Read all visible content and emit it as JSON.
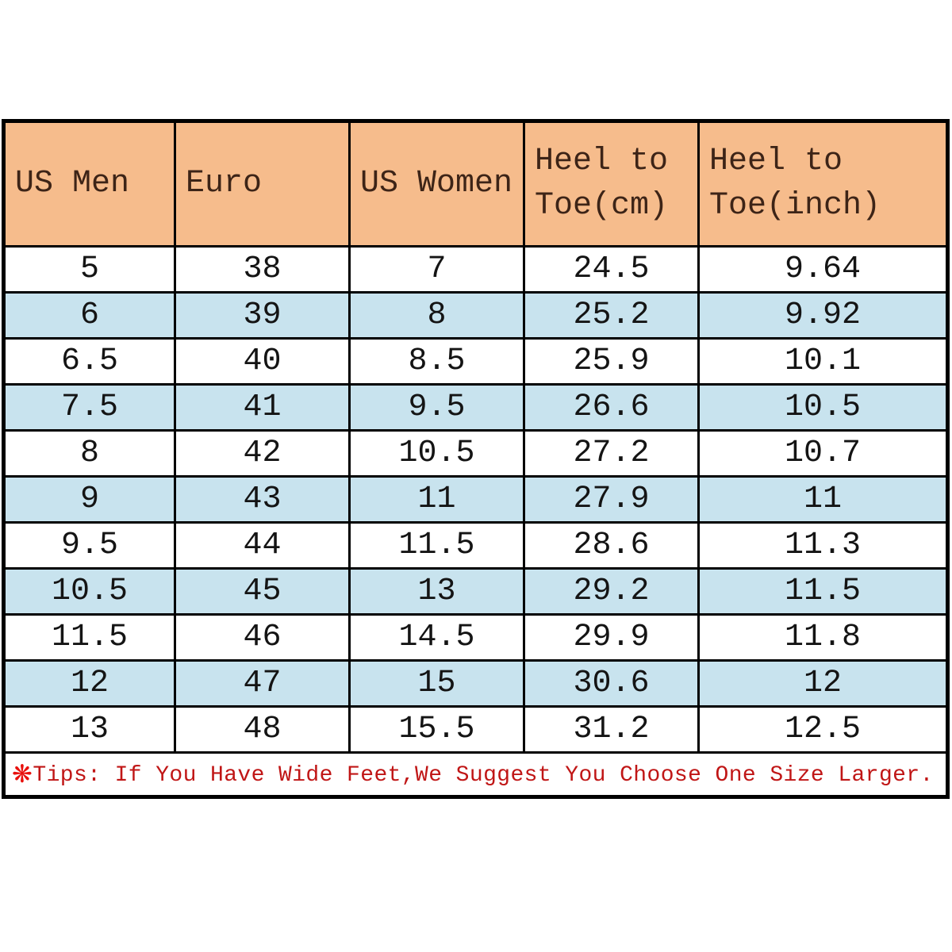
{
  "table": {
    "columns": [
      {
        "id": "us-men",
        "label": "US Men"
      },
      {
        "id": "euro",
        "label": "Euro"
      },
      {
        "id": "us-women",
        "label": "US Women"
      },
      {
        "id": "heel-to-toe-cm",
        "label": "Heel to\nToe(cm)"
      },
      {
        "id": "heel-to-toe-inch",
        "label": "Heel to\nToe(inch)"
      }
    ],
    "rows": [
      [
        "5",
        "38",
        "7",
        "24.5",
        "9.64"
      ],
      [
        "6",
        "39",
        "8",
        "25.2",
        "9.92"
      ],
      [
        "6.5",
        "40",
        "8.5",
        "25.9",
        "10.1"
      ],
      [
        "7.5",
        "41",
        "9.5",
        "26.6",
        "10.5"
      ],
      [
        "8",
        "42",
        "10.5",
        "27.2",
        "10.7"
      ],
      [
        "9",
        "43",
        "11",
        "27.9",
        "11"
      ],
      [
        "9.5",
        "44",
        "11.5",
        "28.6",
        "11.3"
      ],
      [
        "10.5",
        "45",
        "13",
        "29.2",
        "11.5"
      ],
      [
        "11.5",
        "46",
        "14.5",
        "29.9",
        "11.8"
      ],
      [
        "12",
        "47",
        "15",
        "30.6",
        "12"
      ],
      [
        "13",
        "48",
        "15.5",
        "31.2",
        "12.5"
      ]
    ]
  },
  "tips": {
    "marker": "❋",
    "text": "Tips: If You Have Wide Feet,We Suggest You Choose One Size Larger."
  },
  "colors": {
    "header_bg": "#F6BC8C",
    "header_text": "#3D2417",
    "alt_row_bg": "#C8E3EE",
    "row_bg": "#FFFFFF",
    "data_text": "#141414",
    "border": "#000000",
    "tips_text": "#C01616",
    "tips_marker": "#E8100C",
    "page_bg": "#FFFFFF"
  },
  "chart_data": {
    "type": "table",
    "columns": [
      "US Men",
      "Euro",
      "US Women",
      "Heel to Toe(cm)",
      "Heel to Toe(inch)"
    ],
    "rows": [
      [
        5,
        38,
        7,
        24.5,
        9.64
      ],
      [
        6,
        39,
        8,
        25.2,
        9.92
      ],
      [
        6.5,
        40,
        8.5,
        25.9,
        10.1
      ],
      [
        7.5,
        41,
        9.5,
        26.6,
        10.5
      ],
      [
        8,
        42,
        10.5,
        27.2,
        10.7
      ],
      [
        9,
        43,
        11,
        27.9,
        11
      ],
      [
        9.5,
        44,
        11.5,
        28.6,
        11.3
      ],
      [
        10.5,
        45,
        13,
        29.2,
        11.5
      ],
      [
        11.5,
        46,
        14.5,
        29.9,
        11.8
      ],
      [
        12,
        47,
        15,
        30.6,
        12
      ],
      [
        13,
        48,
        15.5,
        31.2,
        12.5
      ]
    ],
    "annotation": "❋Tips: If You Have Wide Feet,We Suggest You Choose One Size Larger.",
    "layout_hints": {
      "header_fill": "#F6BC8C",
      "zebra_fill": "#C8E3EE",
      "grid": true
    }
  }
}
